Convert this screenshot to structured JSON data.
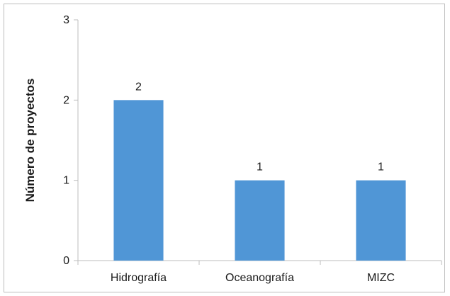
{
  "chart_data": {
    "type": "bar",
    "categories": [
      "Hidrografía",
      "Oceanografía",
      "MIZC"
    ],
    "values": [
      2,
      1,
      1
    ],
    "data_labels": [
      "2",
      "1",
      "1"
    ],
    "title": "",
    "xlabel": "",
    "ylabel": "Número de proyectos",
    "ylim": [
      0,
      3
    ],
    "yticks": [
      0,
      1,
      2,
      3
    ],
    "grid": false,
    "legend": "none",
    "bar_color": "#5096d6"
  }
}
